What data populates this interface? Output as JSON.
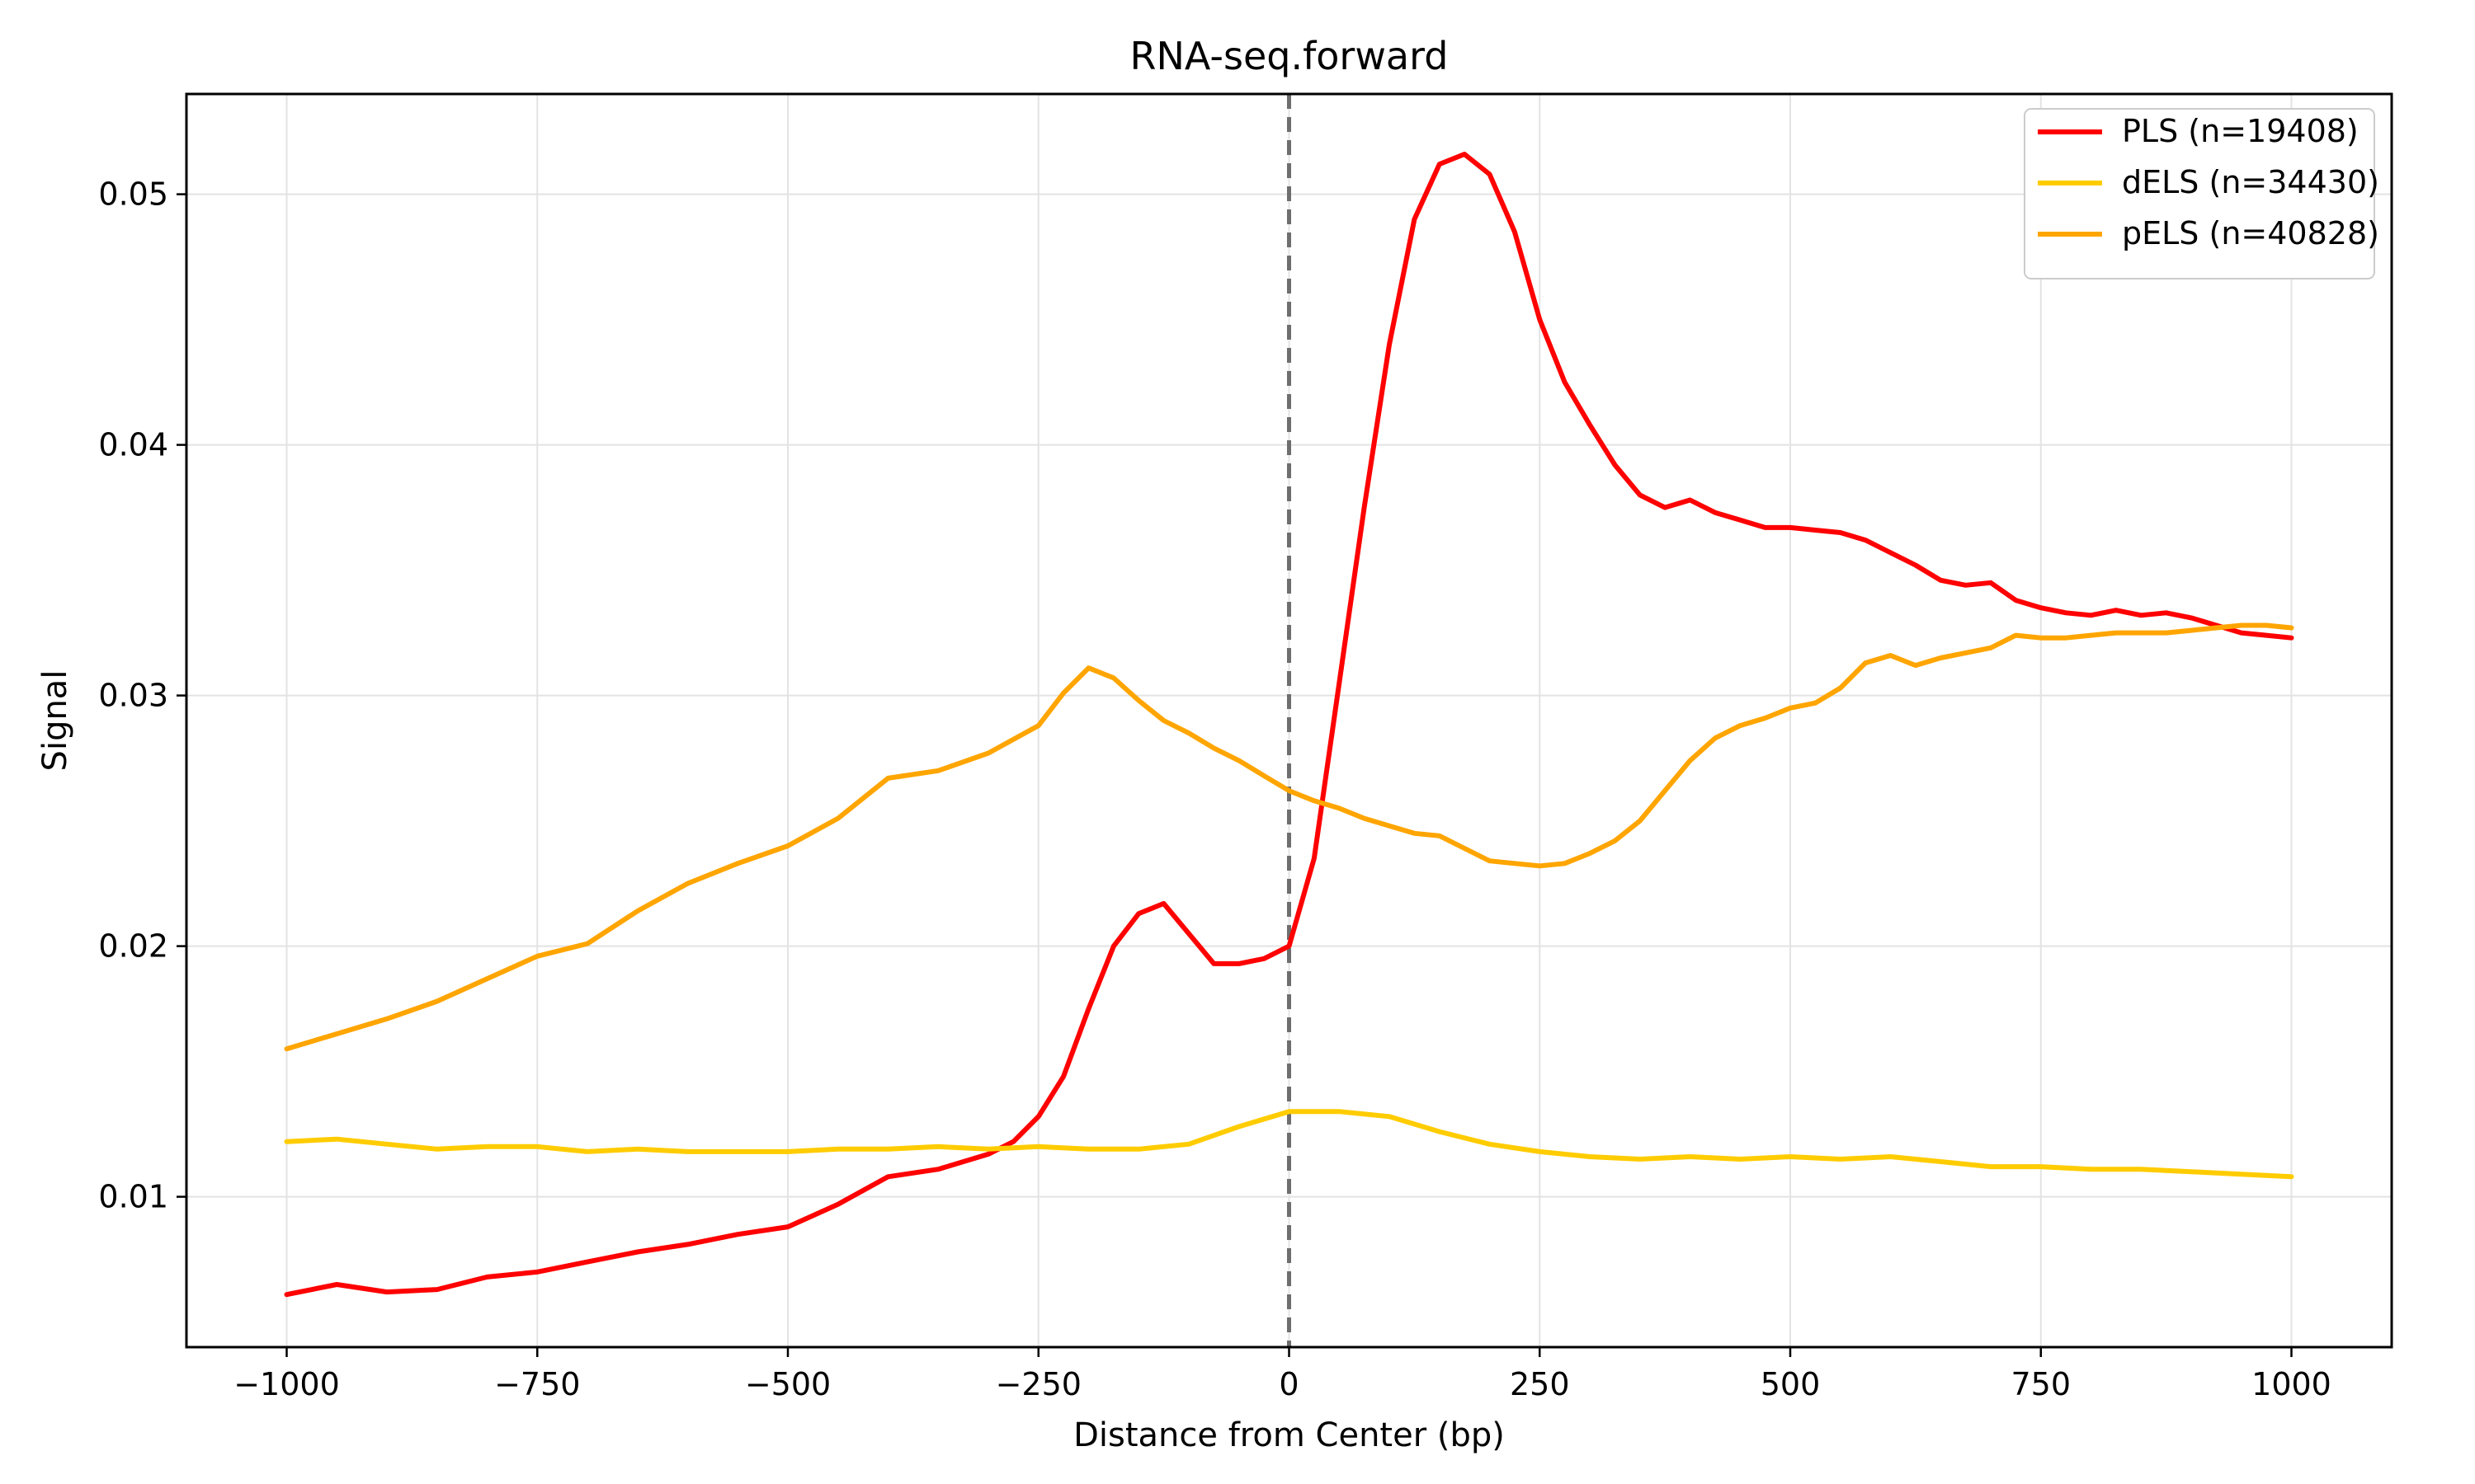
{
  "chart_data": {
    "type": "line",
    "title": "RNA-seq.forward",
    "xlabel": "Distance from Center (bp)",
    "ylabel": "Signal",
    "xlim": [
      -1100,
      1100
    ],
    "ylim": [
      0.004,
      0.054
    ],
    "xticks": [
      -1000,
      -750,
      -500,
      -250,
      0,
      250,
      500,
      750,
      1000
    ],
    "xtick_labels": [
      "−1000",
      "−750",
      "−500",
      "−250",
      "0",
      "250",
      "500",
      "750",
      "1000"
    ],
    "yticks": [
      0.01,
      0.02,
      0.03,
      0.04,
      0.05
    ],
    "ytick_labels": [
      "0.01",
      "0.02",
      "0.03",
      "0.04",
      "0.05"
    ],
    "grid": true,
    "vline": {
      "x": 0,
      "style": "dashed",
      "color": "#6e6e6e"
    },
    "legend_position": "top-right",
    "series": [
      {
        "name": "PLS (n=19408)",
        "color": "#ff0000",
        "x": [
          -1000,
          -950,
          -900,
          -850,
          -800,
          -750,
          -700,
          -650,
          -600,
          -550,
          -500,
          -450,
          -400,
          -350,
          -300,
          -275,
          -250,
          -225,
          -200,
          -175,
          -150,
          -125,
          -100,
          -75,
          -50,
          -25,
          0,
          25,
          50,
          75,
          100,
          125,
          150,
          175,
          200,
          225,
          250,
          275,
          300,
          325,
          350,
          375,
          400,
          425,
          450,
          475,
          500,
          525,
          550,
          575,
          600,
          625,
          650,
          675,
          700,
          725,
          750,
          775,
          800,
          825,
          850,
          875,
          900,
          925,
          950,
          975,
          1000
        ],
        "values": [
          0.0061,
          0.0065,
          0.0062,
          0.0063,
          0.0068,
          0.007,
          0.0074,
          0.0078,
          0.0081,
          0.0085,
          0.0088,
          0.0097,
          0.0108,
          0.0111,
          0.0117,
          0.0122,
          0.0132,
          0.0148,
          0.0175,
          0.02,
          0.0213,
          0.0217,
          0.0205,
          0.0193,
          0.0193,
          0.0195,
          0.02,
          0.0235,
          0.0305,
          0.0375,
          0.044,
          0.049,
          0.0512,
          0.0516,
          0.0508,
          0.0485,
          0.045,
          0.0425,
          0.0408,
          0.0392,
          0.038,
          0.0375,
          0.0378,
          0.0373,
          0.037,
          0.0367,
          0.0367,
          0.0366,
          0.0365,
          0.0362,
          0.0357,
          0.0352,
          0.0346,
          0.0344,
          0.0345,
          0.0338,
          0.0335,
          0.0333,
          0.0332,
          0.0334,
          0.0332,
          0.0333,
          0.0331,
          0.0328,
          0.0325,
          0.0324,
          0.0323
        ]
      },
      {
        "name": "dELS (n=34430)",
        "color": "#ffcc00",
        "x": [
          -1000,
          -950,
          -900,
          -850,
          -800,
          -750,
          -700,
          -650,
          -600,
          -550,
          -500,
          -450,
          -400,
          -350,
          -300,
          -250,
          -200,
          -150,
          -100,
          -50,
          0,
          50,
          100,
          150,
          200,
          250,
          300,
          350,
          400,
          450,
          500,
          550,
          600,
          650,
          700,
          750,
          800,
          850,
          900,
          950,
          1000
        ],
        "values": [
          0.0122,
          0.0123,
          0.0121,
          0.0119,
          0.012,
          0.012,
          0.0118,
          0.0119,
          0.0118,
          0.0118,
          0.0118,
          0.0119,
          0.0119,
          0.012,
          0.0119,
          0.012,
          0.0119,
          0.0119,
          0.0121,
          0.0128,
          0.0134,
          0.0134,
          0.0132,
          0.0126,
          0.0121,
          0.0118,
          0.0116,
          0.0115,
          0.0116,
          0.0115,
          0.0116,
          0.0115,
          0.0116,
          0.0114,
          0.0112,
          0.0112,
          0.0111,
          0.0111,
          0.011,
          0.0109,
          0.0108
        ]
      },
      {
        "name": "pELS (n=40828)",
        "color": "#ffa500",
        "x": [
          -1000,
          -950,
          -900,
          -850,
          -800,
          -750,
          -700,
          -650,
          -600,
          -550,
          -500,
          -450,
          -400,
          -350,
          -300,
          -250,
          -225,
          -200,
          -175,
          -150,
          -125,
          -100,
          -75,
          -50,
          -25,
          0,
          25,
          50,
          75,
          100,
          125,
          150,
          175,
          200,
          225,
          250,
          275,
          300,
          325,
          350,
          375,
          400,
          425,
          450,
          475,
          500,
          525,
          550,
          575,
          600,
          625,
          650,
          675,
          700,
          725,
          750,
          775,
          800,
          825,
          850,
          875,
          900,
          925,
          950,
          975,
          1000
        ],
        "values": [
          0.0159,
          0.0165,
          0.0171,
          0.0178,
          0.0187,
          0.0196,
          0.0201,
          0.0214,
          0.0225,
          0.0233,
          0.024,
          0.0251,
          0.0267,
          0.027,
          0.0277,
          0.0288,
          0.0301,
          0.0311,
          0.0307,
          0.0298,
          0.029,
          0.0285,
          0.0279,
          0.0274,
          0.0268,
          0.0262,
          0.0258,
          0.0255,
          0.0251,
          0.0248,
          0.0245,
          0.0244,
          0.0239,
          0.0234,
          0.0233,
          0.0232,
          0.0233,
          0.0237,
          0.0242,
          0.025,
          0.0262,
          0.0274,
          0.0283,
          0.0288,
          0.0291,
          0.0295,
          0.0297,
          0.0303,
          0.0313,
          0.0316,
          0.0312,
          0.0315,
          0.0317,
          0.0319,
          0.0324,
          0.0323,
          0.0323,
          0.0324,
          0.0325,
          0.0325,
          0.0325,
          0.0326,
          0.0327,
          0.0328,
          0.0328,
          0.0327
        ]
      }
    ]
  }
}
